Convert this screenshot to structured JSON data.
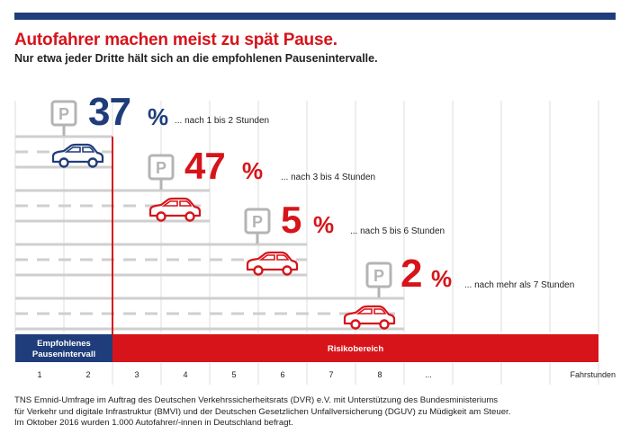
{
  "header": {
    "title": "Autofahrer machen meist zu spät Pause.",
    "subtitle": "Nur etwa jeder Dritte hält sich an die empfohlenen Pausenintervalle."
  },
  "colors": {
    "blue": "#1f3d7a",
    "red": "#d7141a",
    "grid": "#dcdcdc",
    "road": "#cfcfcf",
    "sign": "#b4b4b4"
  },
  "chart_data": {
    "type": "bar",
    "title": "Autofahrer machen meist zu spät Pause.",
    "xlabel": "Fahrstunden",
    "ylabel": "",
    "x_ticks": [
      "1",
      "2",
      "3",
      "4",
      "5",
      "6",
      "7",
      "8",
      "..."
    ],
    "xlim": [
      0,
      12
    ],
    "categories": [
      "nach 1 bis 2 Stunden",
      "nach 3 bis 4 Stunden",
      "nach 5 bis 6 Stunden",
      "nach mehr als 7 Stunden"
    ],
    "values": [
      37,
      47,
      5,
      2
    ],
    "value_labels": [
      "37 %",
      "47 %",
      "5 %",
      "2 %"
    ],
    "category_labels": [
      "... nach 1 bis 2 Stunden",
      "... nach 3 bis 4 Stunden",
      "... nach 5 bis 6 Stunden",
      "... nach mehr als 7 Stunden"
    ],
    "stop_hour": [
      2,
      4,
      6,
      8
    ],
    "zones": [
      {
        "label": "Empfohlenes Pausenintervall",
        "from": 0,
        "to": 2
      },
      {
        "label": "Risikobereich",
        "from": 2,
        "to": 12
      }
    ]
  },
  "sign_letter": "P",
  "footnote": [
    "TNS Emnid-Umfrage im Auftrag des Deutschen Verkehrssicherheitsrats (DVR) e.V. mit Unterstützung des Bundesministeriums",
    "für Verkehr und digitale Infrastruktur (BMVI) und der Deutschen Gesetzlichen Unfallversicherung (DGUV) zu Müdigkeit am Steuer.",
    "Im Oktober 2016 wurden 1.000 Autofahrer/-innen in Deutschland befragt."
  ]
}
